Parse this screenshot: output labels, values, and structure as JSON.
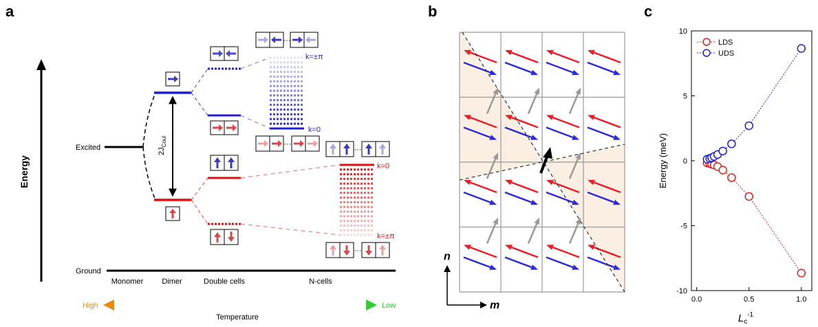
{
  "panel_a": {
    "letter": "a",
    "axis_label": "Energy",
    "level_excited": "Excited",
    "level_ground": "Ground",
    "gap_label_main": "2J",
    "gap_label_sub": "Coul",
    "k_pi_upper": "k=±π",
    "k_zero_upper": "k=0",
    "k_zero_lower": "k=0",
    "k_pi_lower": "k=±π",
    "dots": "···",
    "stages": [
      "Monomer",
      "Dimer",
      "Double cells",
      "N-cells"
    ],
    "temp_high": "High",
    "temp_low": "Low",
    "temp_label": "Temperature",
    "colors": {
      "blue": "#1f1fd6",
      "red": "#e01010",
      "orange": "#f08a00",
      "green": "#33cc33"
    }
  },
  "panel_b": {
    "letter": "b",
    "axis_n": "n",
    "axis_m": "m",
    "colors": {
      "red": "#ee1c25",
      "blue": "#2b2bd9",
      "gray": "#999999",
      "shade": "#fbeee2"
    }
  },
  "chart_data": {
    "type": "scatter",
    "letter": "c",
    "ylabel": "Energy (meV)",
    "xlabel_main": "L",
    "xlabel_sub": "c",
    "xlabel_sup": "-1",
    "xlim": [
      -0.05,
      1.1
    ],
    "ylim": [
      -10,
      10
    ],
    "xticks": [
      "0.0",
      "0.5",
      "1.0"
    ],
    "yticks": [
      "10",
      "5",
      "0",
      "-5",
      "-10"
    ],
    "legend_position": "top-left",
    "series": [
      {
        "name": "LDS",
        "color": "#e02020",
        "x": [
          0.1,
          0.125,
          0.1429,
          0.1667,
          0.2,
          0.25,
          0.3333,
          0.5,
          1.0
        ],
        "y": [
          -0.17,
          -0.22,
          -0.26,
          -0.33,
          -0.45,
          -0.72,
          -1.3,
          -2.75,
          -8.65
        ]
      },
      {
        "name": "UDS",
        "color": "#2020d0",
        "x": [
          0.1,
          0.125,
          0.1429,
          0.1667,
          0.2,
          0.25,
          0.3333,
          0.5,
          1.0
        ],
        "y": [
          0.12,
          0.18,
          0.24,
          0.33,
          0.48,
          0.75,
          1.3,
          2.7,
          8.65
        ]
      }
    ]
  }
}
